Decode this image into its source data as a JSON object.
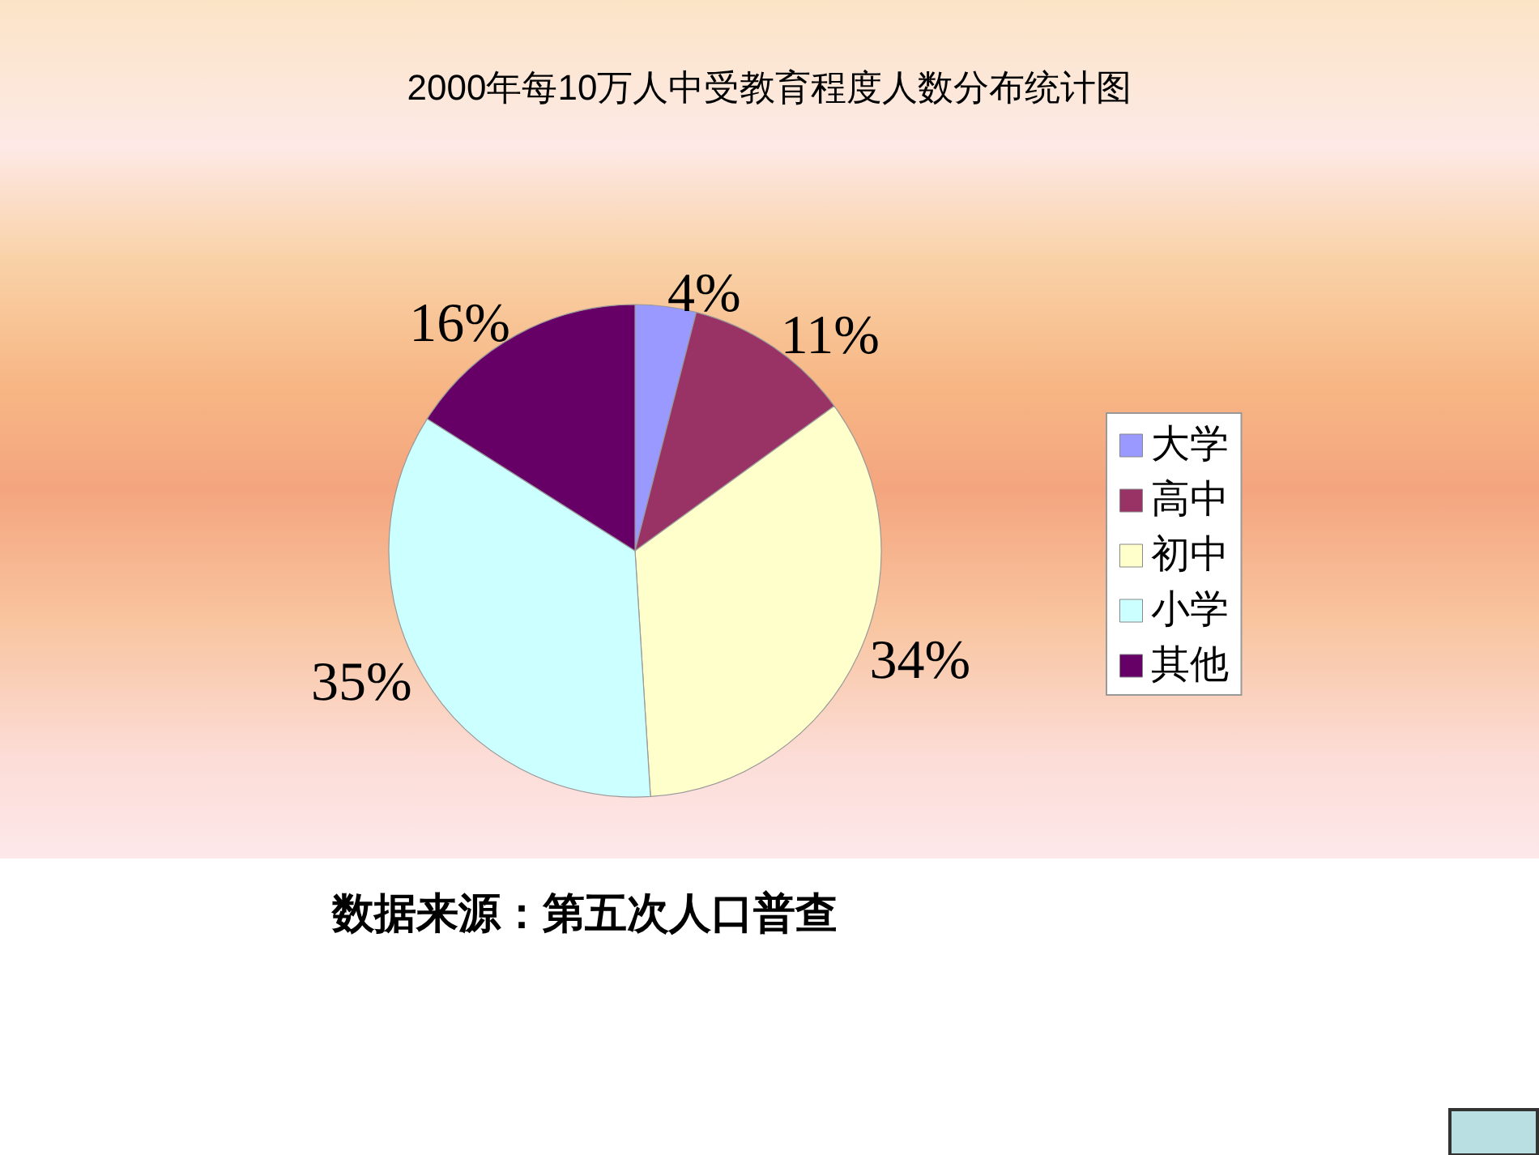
{
  "chart_data": {
    "type": "pie",
    "title": "2000年每10万人中受教育程度人数分布统计图",
    "categories": [
      "大学",
      "高中",
      "初中",
      "小学",
      "其他"
    ],
    "values": [
      4,
      11,
      34,
      35,
      16
    ],
    "colors": [
      "#9999ff",
      "#993366",
      "#ffffcc",
      "#ccffff",
      "#660066"
    ],
    "value_labels": [
      "4%",
      "11%",
      "34%",
      "35%",
      "16%"
    ],
    "legend": "right",
    "annotations": [
      "数据来源：第五次人口普查"
    ]
  }
}
